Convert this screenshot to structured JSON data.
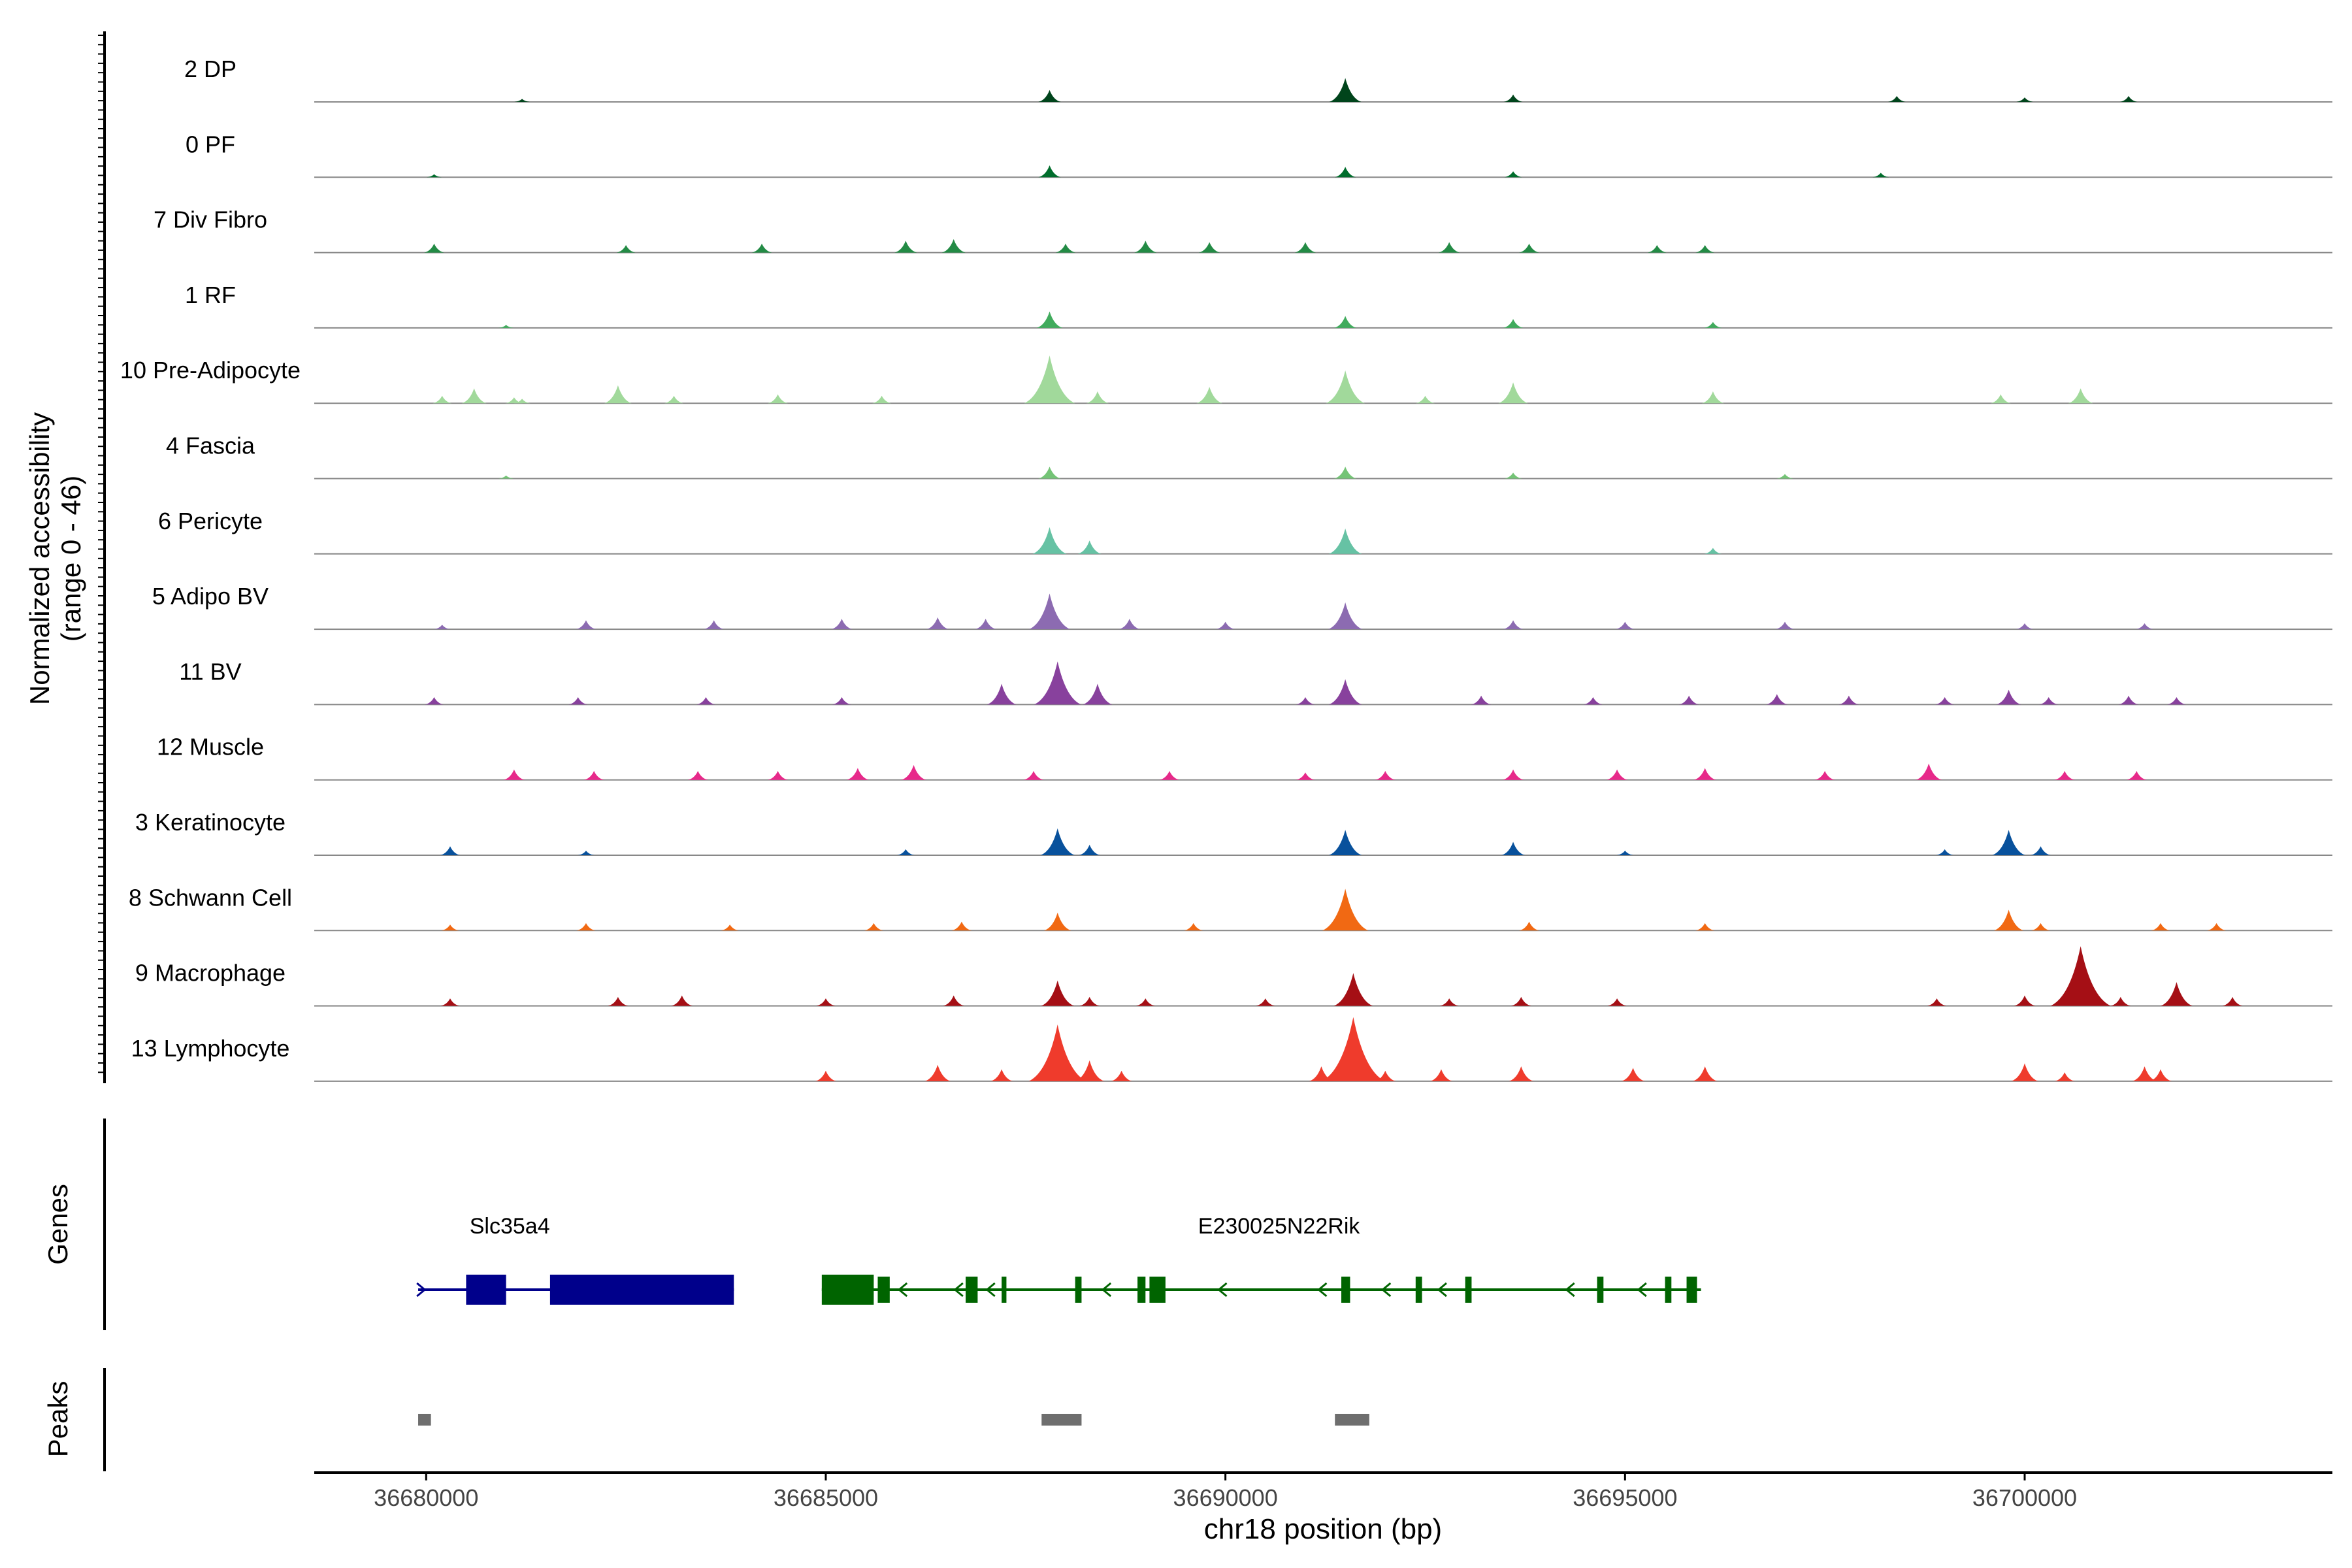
{
  "chart_data": {
    "type": "area",
    "title": "",
    "ylabel_line1": "Normalized accessibility",
    "ylabel_line2": "(range 0 - 46)",
    "ylim": [
      0,
      46
    ],
    "xlabel": "chr18 position (bp)",
    "xlim": [
      36678600,
      36703850
    ],
    "xticks": [
      36680000,
      36685000,
      36690000,
      36695000,
      36700000
    ],
    "xtick_labels": [
      "36680000",
      "36685000",
      "36690000",
      "36695000",
      "36700000"
    ],
    "tracks": [
      {
        "name": "2 DP",
        "color": "#00441b",
        "peaks": [
          [
            36681200,
            2
          ],
          [
            36687800,
            8
          ],
          [
            36691500,
            16
          ],
          [
            36693600,
            5
          ],
          [
            36698400,
            4
          ],
          [
            36700000,
            3
          ],
          [
            36701300,
            4
          ]
        ]
      },
      {
        "name": "0 PF",
        "color": "#006d2c",
        "peaks": [
          [
            36680100,
            2
          ],
          [
            36687800,
            8
          ],
          [
            36691500,
            7
          ],
          [
            36693600,
            4
          ],
          [
            36698200,
            3
          ]
        ]
      },
      {
        "name": "7 Div Fibro",
        "color": "#238b45",
        "peaks": [
          [
            36680100,
            6
          ],
          [
            36682500,
            5
          ],
          [
            36684200,
            6
          ],
          [
            36686000,
            8
          ],
          [
            36686600,
            9
          ],
          [
            36688000,
            6
          ],
          [
            36689000,
            8
          ],
          [
            36689800,
            7
          ],
          [
            36691000,
            7
          ],
          [
            36692800,
            7
          ],
          [
            36693800,
            6
          ],
          [
            36695400,
            5
          ],
          [
            36696000,
            5
          ]
        ]
      },
      {
        "name": "1 RF",
        "color": "#41ab5d",
        "peaks": [
          [
            36681000,
            2
          ],
          [
            36687800,
            11
          ],
          [
            36691500,
            8
          ],
          [
            36693600,
            6
          ],
          [
            36696100,
            4
          ]
        ]
      },
      {
        "name": "10 Pre-Adipocyte",
        "color": "#a1d99b",
        "peaks": [
          [
            36680200,
            5
          ],
          [
            36680600,
            10
          ],
          [
            36681100,
            4
          ],
          [
            36681200,
            3
          ],
          [
            36682400,
            12
          ],
          [
            36683100,
            5
          ],
          [
            36684400,
            6
          ],
          [
            36685700,
            5
          ],
          [
            36687800,
            32
          ],
          [
            36688400,
            8
          ],
          [
            36689800,
            11
          ],
          [
            36691500,
            22
          ],
          [
            36692500,
            5
          ],
          [
            36693600,
            14
          ],
          [
            36696100,
            8
          ],
          [
            36700700,
            10
          ],
          [
            36699700,
            6
          ]
        ]
      },
      {
        "name": "4 Fascia",
        "color": "#74c476",
        "peaks": [
          [
            36681000,
            2
          ],
          [
            36687800,
            8
          ],
          [
            36691500,
            8
          ],
          [
            36693600,
            4
          ],
          [
            36697000,
            3
          ]
        ]
      },
      {
        "name": "6 Pericyte",
        "color": "#66c2a4",
        "peaks": [
          [
            36687800,
            18
          ],
          [
            36688300,
            9
          ],
          [
            36691500,
            17
          ],
          [
            36696100,
            4
          ]
        ]
      },
      {
        "name": "5 Adipo BV",
        "color": "#8c6bb1",
        "peaks": [
          [
            36680200,
            3
          ],
          [
            36682000,
            6
          ],
          [
            36683600,
            6
          ],
          [
            36685200,
            7
          ],
          [
            36686400,
            8
          ],
          [
            36687000,
            7
          ],
          [
            36687800,
            24
          ],
          [
            36688800,
            7
          ],
          [
            36690000,
            5
          ],
          [
            36691500,
            18
          ],
          [
            36693600,
            6
          ],
          [
            36695000,
            5
          ],
          [
            36697000,
            5
          ],
          [
            36700000,
            4
          ],
          [
            36701500,
            4
          ]
        ]
      },
      {
        "name": "11 BV",
        "color": "#88419d",
        "peaks": [
          [
            36680100,
            5
          ],
          [
            36681900,
            5
          ],
          [
            36683500,
            5
          ],
          [
            36685200,
            5
          ],
          [
            36687200,
            14
          ],
          [
            36687900,
            29
          ],
          [
            36688400,
            14
          ],
          [
            36691500,
            17
          ],
          [
            36691000,
            5
          ],
          [
            36693200,
            6
          ],
          [
            36694600,
            5
          ],
          [
            36695800,
            6
          ],
          [
            36696900,
            7
          ],
          [
            36697800,
            6
          ],
          [
            36699000,
            5
          ],
          [
            36699800,
            10
          ],
          [
            36700300,
            5
          ],
          [
            36701300,
            6
          ],
          [
            36701900,
            5
          ]
        ]
      },
      {
        "name": "12 Muscle",
        "color": "#e7298a",
        "peaks": [
          [
            36681100,
            7
          ],
          [
            36682100,
            6
          ],
          [
            36683400,
            6
          ],
          [
            36684400,
            6
          ],
          [
            36685400,
            8
          ],
          [
            36686100,
            10
          ],
          [
            36687600,
            6
          ],
          [
            36689300,
            6
          ],
          [
            36691000,
            5
          ],
          [
            36692000,
            6
          ],
          [
            36693600,
            7
          ],
          [
            36694900,
            7
          ],
          [
            36696000,
            8
          ],
          [
            36697500,
            6
          ],
          [
            36698800,
            11
          ],
          [
            36700500,
            6
          ],
          [
            36701400,
            6
          ]
        ]
      },
      {
        "name": "3 Keratinocyte",
        "color": "#08519c",
        "peaks": [
          [
            36680300,
            6
          ],
          [
            36682000,
            3
          ],
          [
            36686000,
            4
          ],
          [
            36687900,
            18
          ],
          [
            36688300,
            7
          ],
          [
            36691500,
            17
          ],
          [
            36693600,
            9
          ],
          [
            36695000,
            3
          ],
          [
            36699000,
            4
          ],
          [
            36699800,
            17
          ],
          [
            36700200,
            6
          ]
        ]
      },
      {
        "name": "8 Schwann Cell",
        "color": "#f16913",
        "peaks": [
          [
            36680300,
            4
          ],
          [
            36682000,
            5
          ],
          [
            36683800,
            4
          ],
          [
            36685600,
            5
          ],
          [
            36686700,
            6
          ],
          [
            36687900,
            12
          ],
          [
            36689600,
            5
          ],
          [
            36691500,
            28
          ],
          [
            36693800,
            6
          ],
          [
            36696000,
            5
          ],
          [
            36699800,
            14
          ],
          [
            36700200,
            5
          ],
          [
            36701700,
            5
          ],
          [
            36702400,
            5
          ]
        ]
      },
      {
        "name": "9 Macrophage",
        "color": "#a50f15",
        "peaks": [
          [
            36680300,
            5
          ],
          [
            36682400,
            6
          ],
          [
            36683200,
            7
          ],
          [
            36685000,
            5
          ],
          [
            36686600,
            7
          ],
          [
            36687900,
            17
          ],
          [
            36688300,
            6
          ],
          [
            36689000,
            5
          ],
          [
            36690500,
            5
          ],
          [
            36691600,
            22
          ],
          [
            36692800,
            5
          ],
          [
            36693700,
            6
          ],
          [
            36694900,
            5
          ],
          [
            36698900,
            5
          ],
          [
            36700000,
            7
          ],
          [
            36700700,
            40
          ],
          [
            36701200,
            6
          ],
          [
            36701900,
            16
          ],
          [
            36702600,
            6
          ]
        ]
      },
      {
        "name": "13 Lymphocyte",
        "color": "#ef3b2c",
        "peaks": [
          [
            36685000,
            7
          ],
          [
            36686400,
            11
          ],
          [
            36687200,
            8
          ],
          [
            36687900,
            38
          ],
          [
            36688300,
            14
          ],
          [
            36688700,
            7
          ],
          [
            36691200,
            10
          ],
          [
            36691600,
            43
          ],
          [
            36692000,
            7
          ],
          [
            36692700,
            8
          ],
          [
            36693700,
            10
          ],
          [
            36695100,
            9
          ],
          [
            36696000,
            10
          ],
          [
            36700000,
            12
          ],
          [
            36700500,
            6
          ],
          [
            36701500,
            10
          ],
          [
            36701700,
            8
          ]
        ]
      }
    ],
    "genes_label": "Genes",
    "genes": [
      {
        "name": "Slc35a4",
        "color": "#00008b",
        "strand": "+",
        "start": 36679900,
        "end": 36683850,
        "exons": [
          [
            36680500,
            36681000
          ],
          [
            36681550,
            36683850
          ]
        ],
        "arrows": [
          36679950
        ]
      },
      {
        "name": "E230025N22Rik",
        "color": "#006400",
        "strand": "-",
        "start": 36684950,
        "end": 36695950,
        "exons": [
          [
            36684950,
            36685600
          ],
          [
            36685650,
            36685800
          ],
          [
            36686750,
            36686900
          ],
          [
            36687200,
            36687260
          ],
          [
            36688120,
            36688200
          ],
          [
            36688900,
            36689000
          ],
          [
            36689050,
            36689250
          ],
          [
            36691450,
            36691560
          ],
          [
            36692380,
            36692460
          ],
          [
            36693000,
            36693080
          ],
          [
            36694650,
            36694730
          ],
          [
            36695500,
            36695580
          ],
          [
            36695770,
            36695900
          ]
        ],
        "arrows": [
          36685950,
          36686650,
          36687050,
          36688500,
          36689950,
          36691200,
          36692000,
          36692700,
          36694300,
          36695200
        ]
      }
    ],
    "peaks_label": "Peaks",
    "peak_regions": [
      [
        36679900,
        36680060
      ],
      [
        36687700,
        36688200
      ],
      [
        36691370,
        36691800
      ]
    ]
  }
}
